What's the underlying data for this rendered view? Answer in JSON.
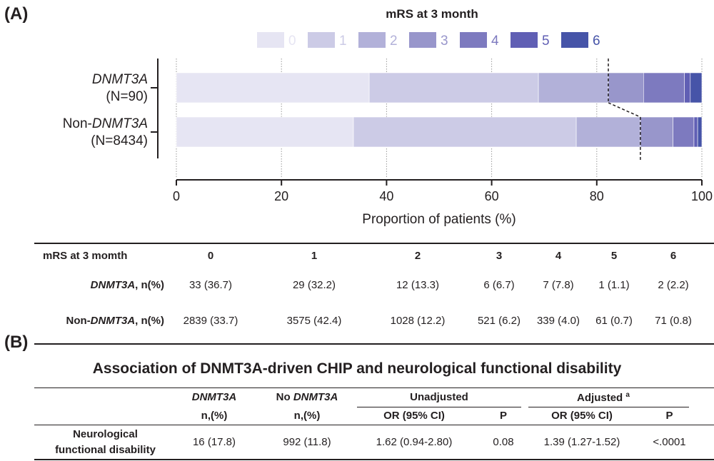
{
  "panel_a_label": "(A)",
  "panel_b_label": "(B)",
  "chart_data": {
    "type": "bar",
    "orientation": "horizontal",
    "stacked": true,
    "title": "mRS at 3 month",
    "legend_position": "top",
    "categories": [
      {
        "name": "DNMT3A",
        "prefix": "",
        "italic": "DNMT3A",
        "n": "(N=90)"
      },
      {
        "name": "Non-DNMT3A",
        "prefix": "Non-",
        "italic": "DNMT3A",
        "n": "(N=8434)"
      }
    ],
    "series": [
      {
        "name": "0",
        "values": [
          36.7,
          33.7
        ],
        "color": "#e6e5f3"
      },
      {
        "name": "1",
        "values": [
          32.2,
          42.4
        ],
        "color": "#cccbe6"
      },
      {
        "name": "2",
        "values": [
          13.3,
          12.2
        ],
        "color": "#b2b1d9"
      },
      {
        "name": "3",
        "values": [
          6.7,
          6.2
        ],
        "color": "#9896cb"
      },
      {
        "name": "4",
        "values": [
          7.8,
          4.0
        ],
        "color": "#7d7abf"
      },
      {
        "name": "5",
        "values": [
          1.1,
          0.7
        ],
        "color": "#605fb4"
      },
      {
        "name": "6",
        "values": [
          2.2,
          0.8
        ],
        "color": "#4654a8"
      }
    ],
    "xlabel": "Proportion of patients (%)",
    "xlim": [
      0,
      100
    ],
    "xticks": [
      "0",
      "20",
      "40",
      "60",
      "80",
      "100"
    ],
    "grid": "vertical dotted",
    "cutoff_line": "dashed line between mRS 2 and mRS 3"
  },
  "table_a": {
    "header": [
      "mRS at 3 momth",
      "0",
      "1",
      "2",
      "3",
      "4",
      "5",
      "6"
    ],
    "rows": [
      {
        "label_prefix": "",
        "label_italic": "DNMT3A",
        "label_suffix": ", n(%)",
        "cells": [
          "33 (36.7)",
          "29 (32.2)",
          "12 (13.3)",
          "6 (6.7)",
          "7 (7.8)",
          "1 (1.1)",
          "2 (2.2)"
        ]
      },
      {
        "label_prefix": "Non-",
        "label_italic": "DNMT3A",
        "label_suffix": ", n(%)",
        "cells": [
          "2839 (33.7)",
          "3575 (42.4)",
          "1028 (12.2)",
          "521 (6.2)",
          "339 (4.0)",
          "61 (0.7)",
          "71 (0.8)"
        ]
      }
    ]
  },
  "table_b": {
    "title": "Association of DNMT3A-driven CHIP and neurological functional disability",
    "col1_top": "DNMT3A",
    "col2_top_prefix": "No ",
    "col2_top_italic": "DNMT3A",
    "col_n": "n,(%)",
    "unadjusted": "Unadjusted",
    "adjusted": "Adjusted",
    "adjusted_sup": "a",
    "or_label": "OR (95% CI)",
    "p_label": "P",
    "row_label_line1": "Neurological",
    "row_label_line2": "functional disability",
    "row_values": [
      "16 (17.8)",
      "992 (11.8)",
      "1.62 (0.94-2.80)",
      "0.08",
      "1.39 (1.27-1.52)",
      "<.0001"
    ]
  }
}
